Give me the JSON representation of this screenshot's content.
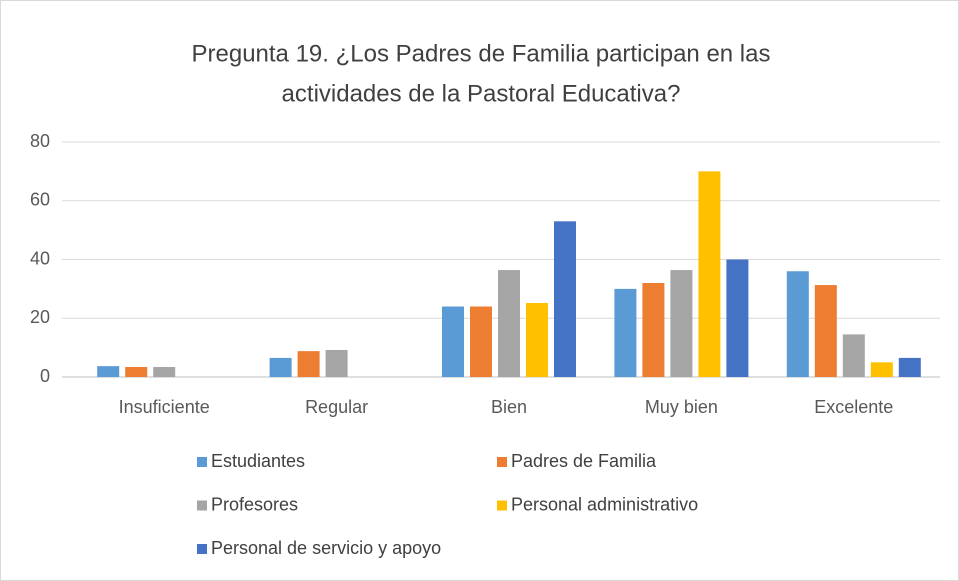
{
  "chart_data": {
    "type": "bar",
    "title": [
      "Pregunta 19. ¿Los Padres de Familia participan en las",
      "actividades de la Pastoral Educativa?"
    ],
    "categories": [
      "Insuficiente",
      "Regular",
      "Bien",
      "Muy bien",
      "Excelente"
    ],
    "series": [
      {
        "name": "Estudiantes",
        "color": "#5b9bd5",
        "values": [
          3.7,
          6.5,
          24,
          30,
          36
        ]
      },
      {
        "name": "Padres de Familia",
        "color": "#ed7d31",
        "values": [
          3.4,
          8.8,
          24,
          32,
          31.3
        ]
      },
      {
        "name": "Profesores",
        "color": "#a5a5a5",
        "values": [
          3.4,
          9.2,
          36.4,
          36.4,
          14.5
        ]
      },
      {
        "name": "Personal administrativo",
        "color": "#ffc000",
        "values": [
          0,
          0,
          25.2,
          70,
          5
        ]
      },
      {
        "name": "Personal de servicio y apoyo",
        "color": "#4472c4",
        "values": [
          0,
          0,
          53,
          40,
          6.5
        ]
      }
    ],
    "ylim": [
      0,
      80
    ],
    "yticks": [
      0,
      20,
      40,
      60,
      80
    ],
    "grid": true,
    "legend": "bottom"
  }
}
